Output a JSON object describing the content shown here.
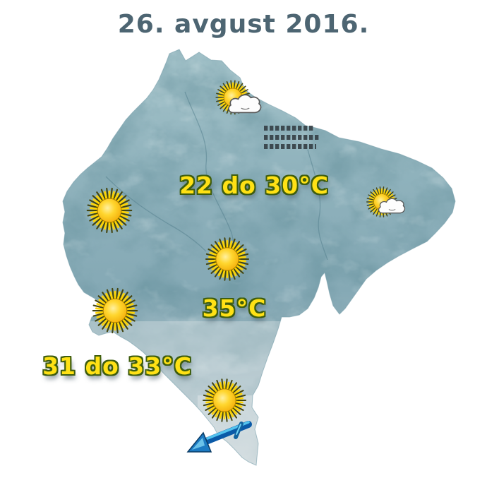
{
  "title": "26. avgust 2016.",
  "labels": {
    "north_range": "22 do 30°C",
    "central_max": "35°C",
    "south_range": "31 do 33°C"
  },
  "icons": {
    "placements": [
      {
        "icon": "sun-cloud-icon",
        "area": "north"
      },
      {
        "icon": "sun-cloud-icon",
        "area": "east"
      },
      {
        "icon": "sun-icon",
        "area": "west"
      },
      {
        "icon": "sun-icon",
        "area": "center"
      },
      {
        "icon": "sun-icon",
        "area": "southwest"
      },
      {
        "icon": "sun-icon",
        "area": "south"
      },
      {
        "icon": "wind-arrow-icon",
        "area": "south-coast",
        "points": "southwest"
      }
    ]
  },
  "microtext_rows": 3,
  "colors": {
    "title_text": "#4d6572",
    "label_fill": "#ffe115",
    "label_outline": "#3e5d0f",
    "map_base": "#8fb2bc",
    "sun_core": "#ffd62e",
    "wind_arrow": "#1c7ac2"
  }
}
